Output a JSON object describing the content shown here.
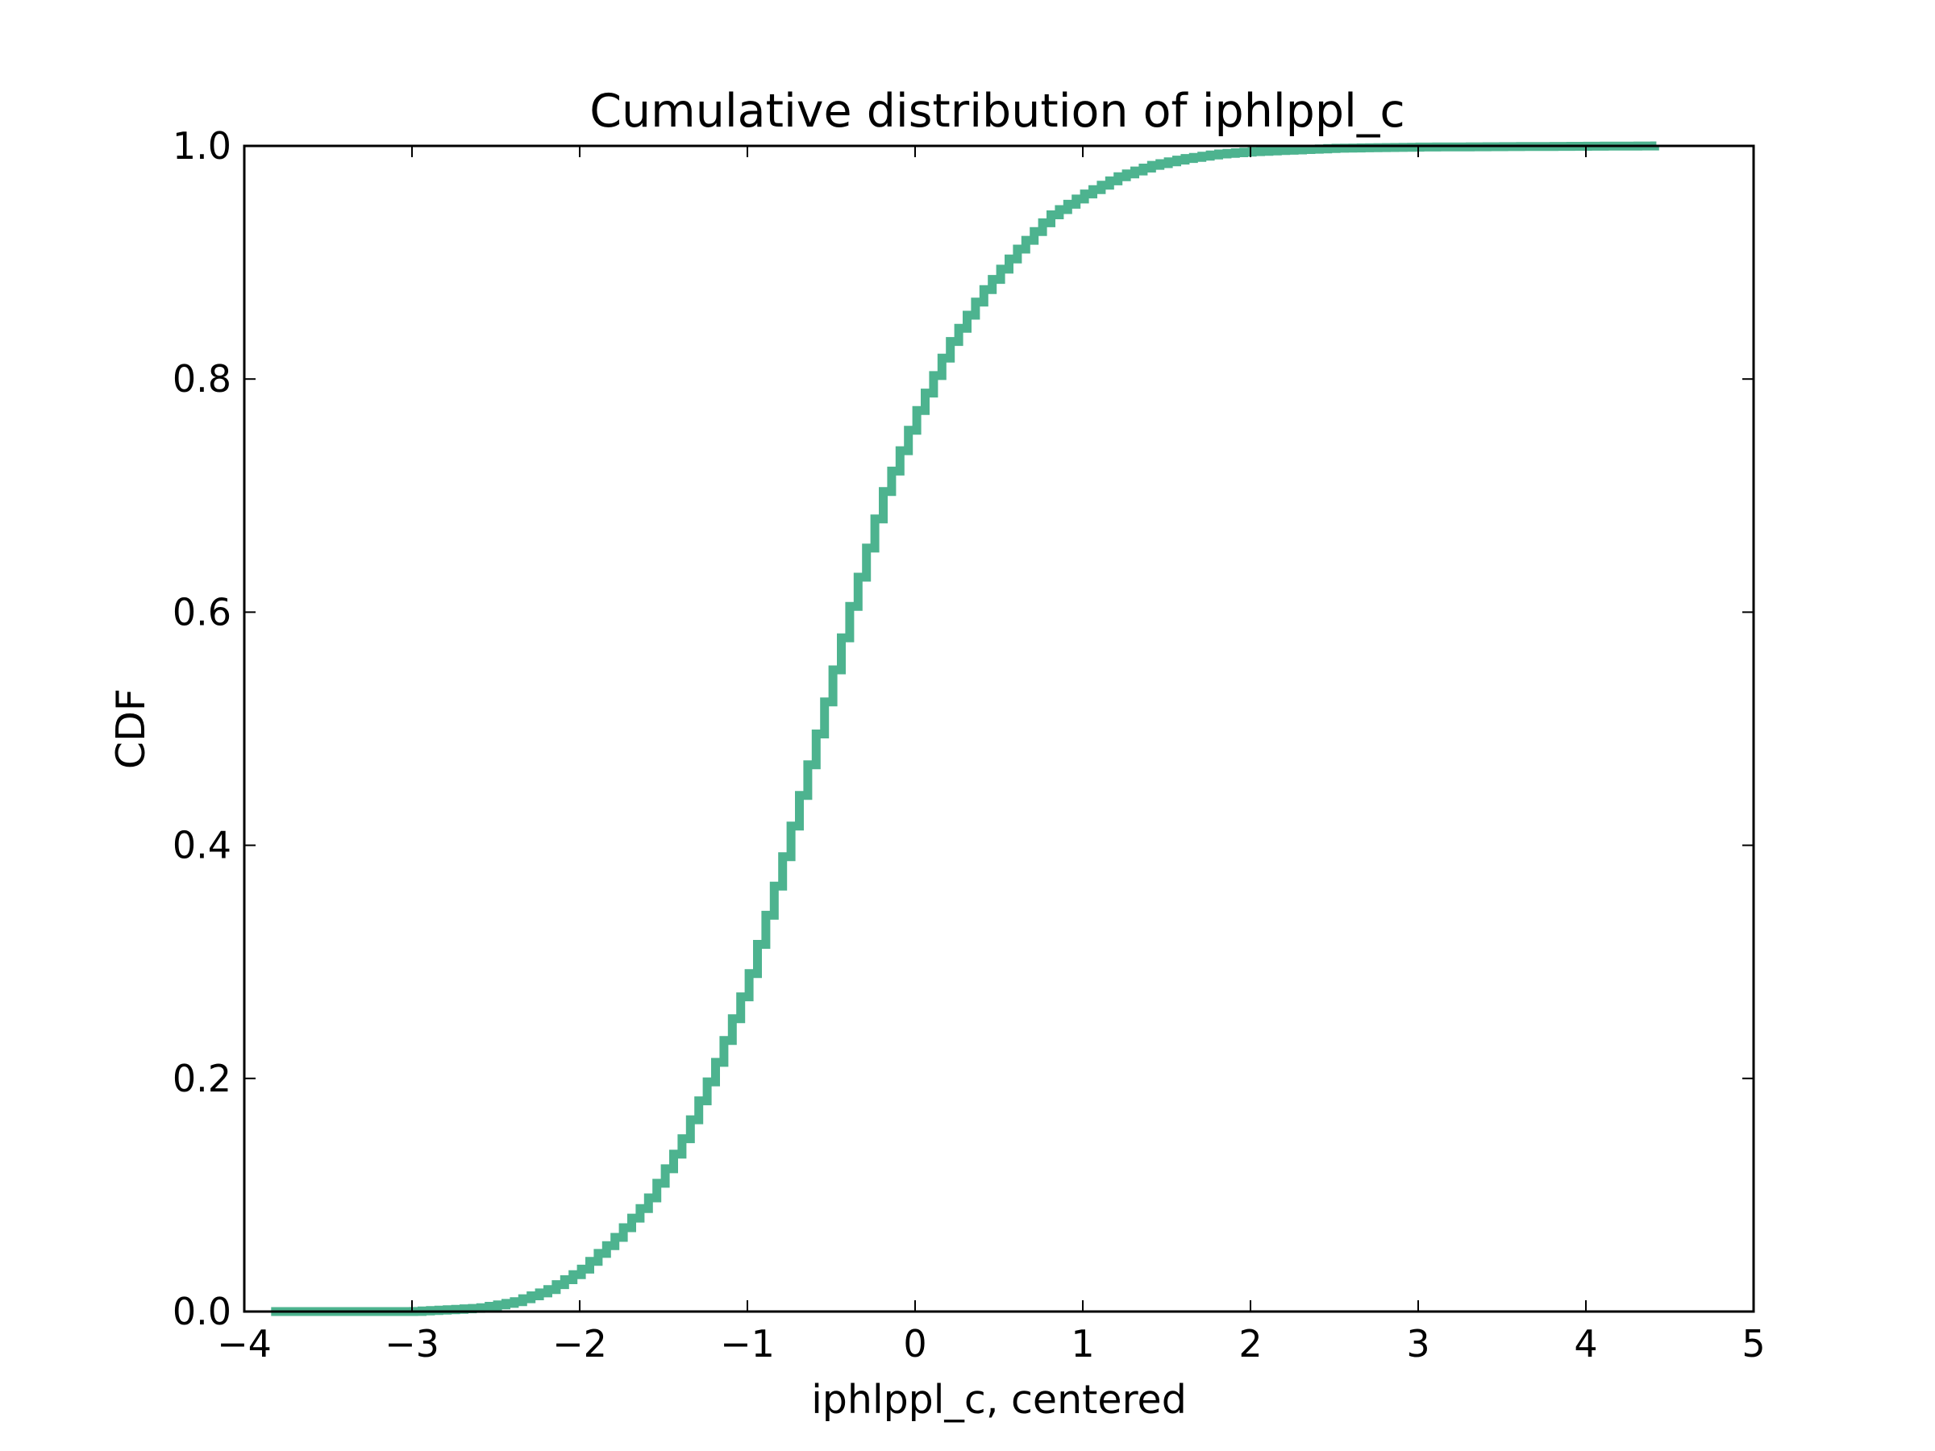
{
  "chart_data": {
    "type": "line",
    "step": true,
    "title": "Cumulative distribution of iphlppl_c",
    "xlabel": "iphlppl_c, centered",
    "ylabel": "CDF",
    "xlim": [
      -4,
      5
    ],
    "ylim": [
      0,
      1
    ],
    "x_ticks": [
      -4,
      -3,
      -2,
      -1,
      0,
      1,
      2,
      3,
      4,
      5
    ],
    "x_tick_labels": [
      "−4",
      "−3",
      "−2",
      "−1",
      "0",
      "1",
      "2",
      "3",
      "4",
      "5"
    ],
    "y_ticks": [
      0,
      0.2,
      0.4,
      0.6,
      0.8,
      1.0
    ],
    "y_tick_labels": [
      "0.0",
      "0.2",
      "0.4",
      "0.6",
      "0.8",
      "1.0"
    ],
    "grid": false,
    "series": [
      {
        "name": "iphlppl_c",
        "color": "#4db38f",
        "points": [
          [
            -3.84,
            0.0
          ],
          [
            -3.0,
            0.0
          ],
          [
            -2.6,
            0.003
          ],
          [
            -2.4,
            0.008
          ],
          [
            -2.2,
            0.018
          ],
          [
            -2.0,
            0.035
          ],
          [
            -1.8,
            0.062
          ],
          [
            -1.6,
            0.095
          ],
          [
            -1.4,
            0.145
          ],
          [
            -1.2,
            0.21
          ],
          [
            -1.0,
            0.285
          ],
          [
            -0.8,
            0.385
          ],
          [
            -0.6,
            0.49
          ],
          [
            -0.4,
            0.6
          ],
          [
            -0.2,
            0.7
          ],
          [
            0.0,
            0.77
          ],
          [
            0.2,
            0.83
          ],
          [
            0.4,
            0.875
          ],
          [
            0.6,
            0.91
          ],
          [
            0.8,
            0.94
          ],
          [
            1.0,
            0.958
          ],
          [
            1.2,
            0.973
          ],
          [
            1.4,
            0.983
          ],
          [
            1.6,
            0.989
          ],
          [
            1.8,
            0.993
          ],
          [
            2.0,
            0.995
          ],
          [
            2.5,
            0.998
          ],
          [
            3.0,
            0.999
          ],
          [
            4.42,
            1.0
          ]
        ]
      }
    ]
  }
}
